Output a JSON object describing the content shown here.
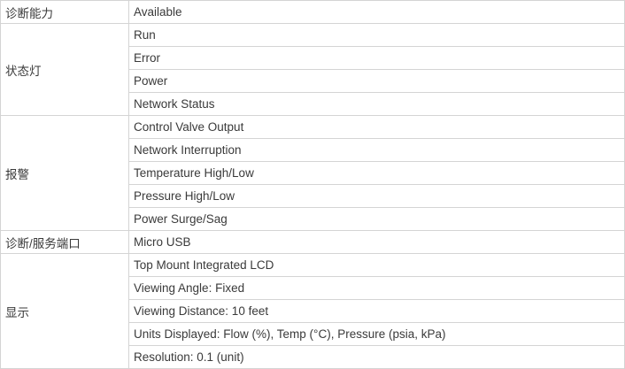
{
  "table": {
    "border_color": "#d4d4d4",
    "text_color": "#3a3a3a",
    "sections": [
      {
        "label": "诊断能力",
        "items": [
          "Available"
        ]
      },
      {
        "label": "状态灯",
        "items": [
          "Run",
          "Error",
          "Power",
          "Network Status"
        ]
      },
      {
        "label": "报警",
        "items": [
          "Control Valve Output",
          "Network Interruption",
          "Temperature High/Low",
          "Pressure High/Low",
          "Power Surge/Sag"
        ]
      },
      {
        "label": "诊断/服务端口",
        "items": [
          "Micro USB"
        ]
      },
      {
        "label": "显示",
        "items": [
          "Top Mount Integrated LCD",
          "Viewing Angle: Fixed",
          "Viewing Distance: 10 feet",
          "Units Displayed: Flow (%), Temp (°C), Pressure (psia, kPa)",
          "Resolution: 0.1 (unit)"
        ]
      }
    ]
  }
}
